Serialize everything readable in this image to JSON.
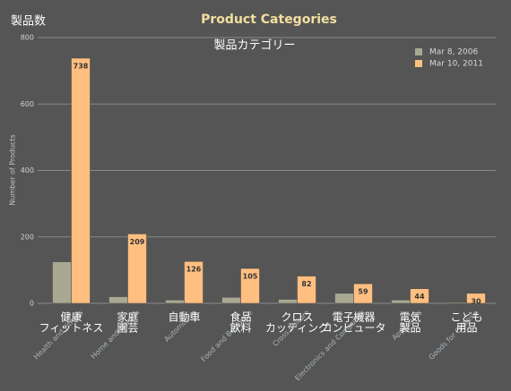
{
  "chart_data": {
    "type": "bar",
    "title": "Product Categories",
    "y_label": "Number of Products",
    "categories": [
      "Health and Fitness",
      "Home and Garden",
      "Automotive",
      "Food and Beverage",
      "Cross Culture",
      "Electronics and Computers",
      "Appliances",
      "Goods for Children"
    ],
    "series": [
      {
        "name": "Mar 8, 2006",
        "color": "#a9a993",
        "values": [
          125,
          20,
          10,
          18,
          12,
          30,
          10,
          3
        ]
      },
      {
        "name": "Mar 10, 2011",
        "color": "#ffbf80",
        "values": [
          738,
          209,
          126,
          105,
          82,
          59,
          44,
          30
        ]
      }
    ],
    "ylim": [
      0,
      800
    ],
    "yticks": [
      0,
      200,
      400,
      600,
      800
    ],
    "grid": true,
    "legend": "top-right"
  },
  "overlay": {
    "y_label": "製品数",
    "title": "製品カテゴリー",
    "categories": [
      [
        "健康",
        "フィットネス"
      ],
      [
        "家庭",
        "園芸"
      ],
      [
        "自動車"
      ],
      [
        "食品",
        "飲料"
      ],
      [
        "クロス",
        "カッティング"
      ],
      [
        "電子機器",
        "コンピュータ"
      ],
      [
        "電気",
        "製品"
      ],
      [
        "こども",
        "用品"
      ]
    ]
  }
}
